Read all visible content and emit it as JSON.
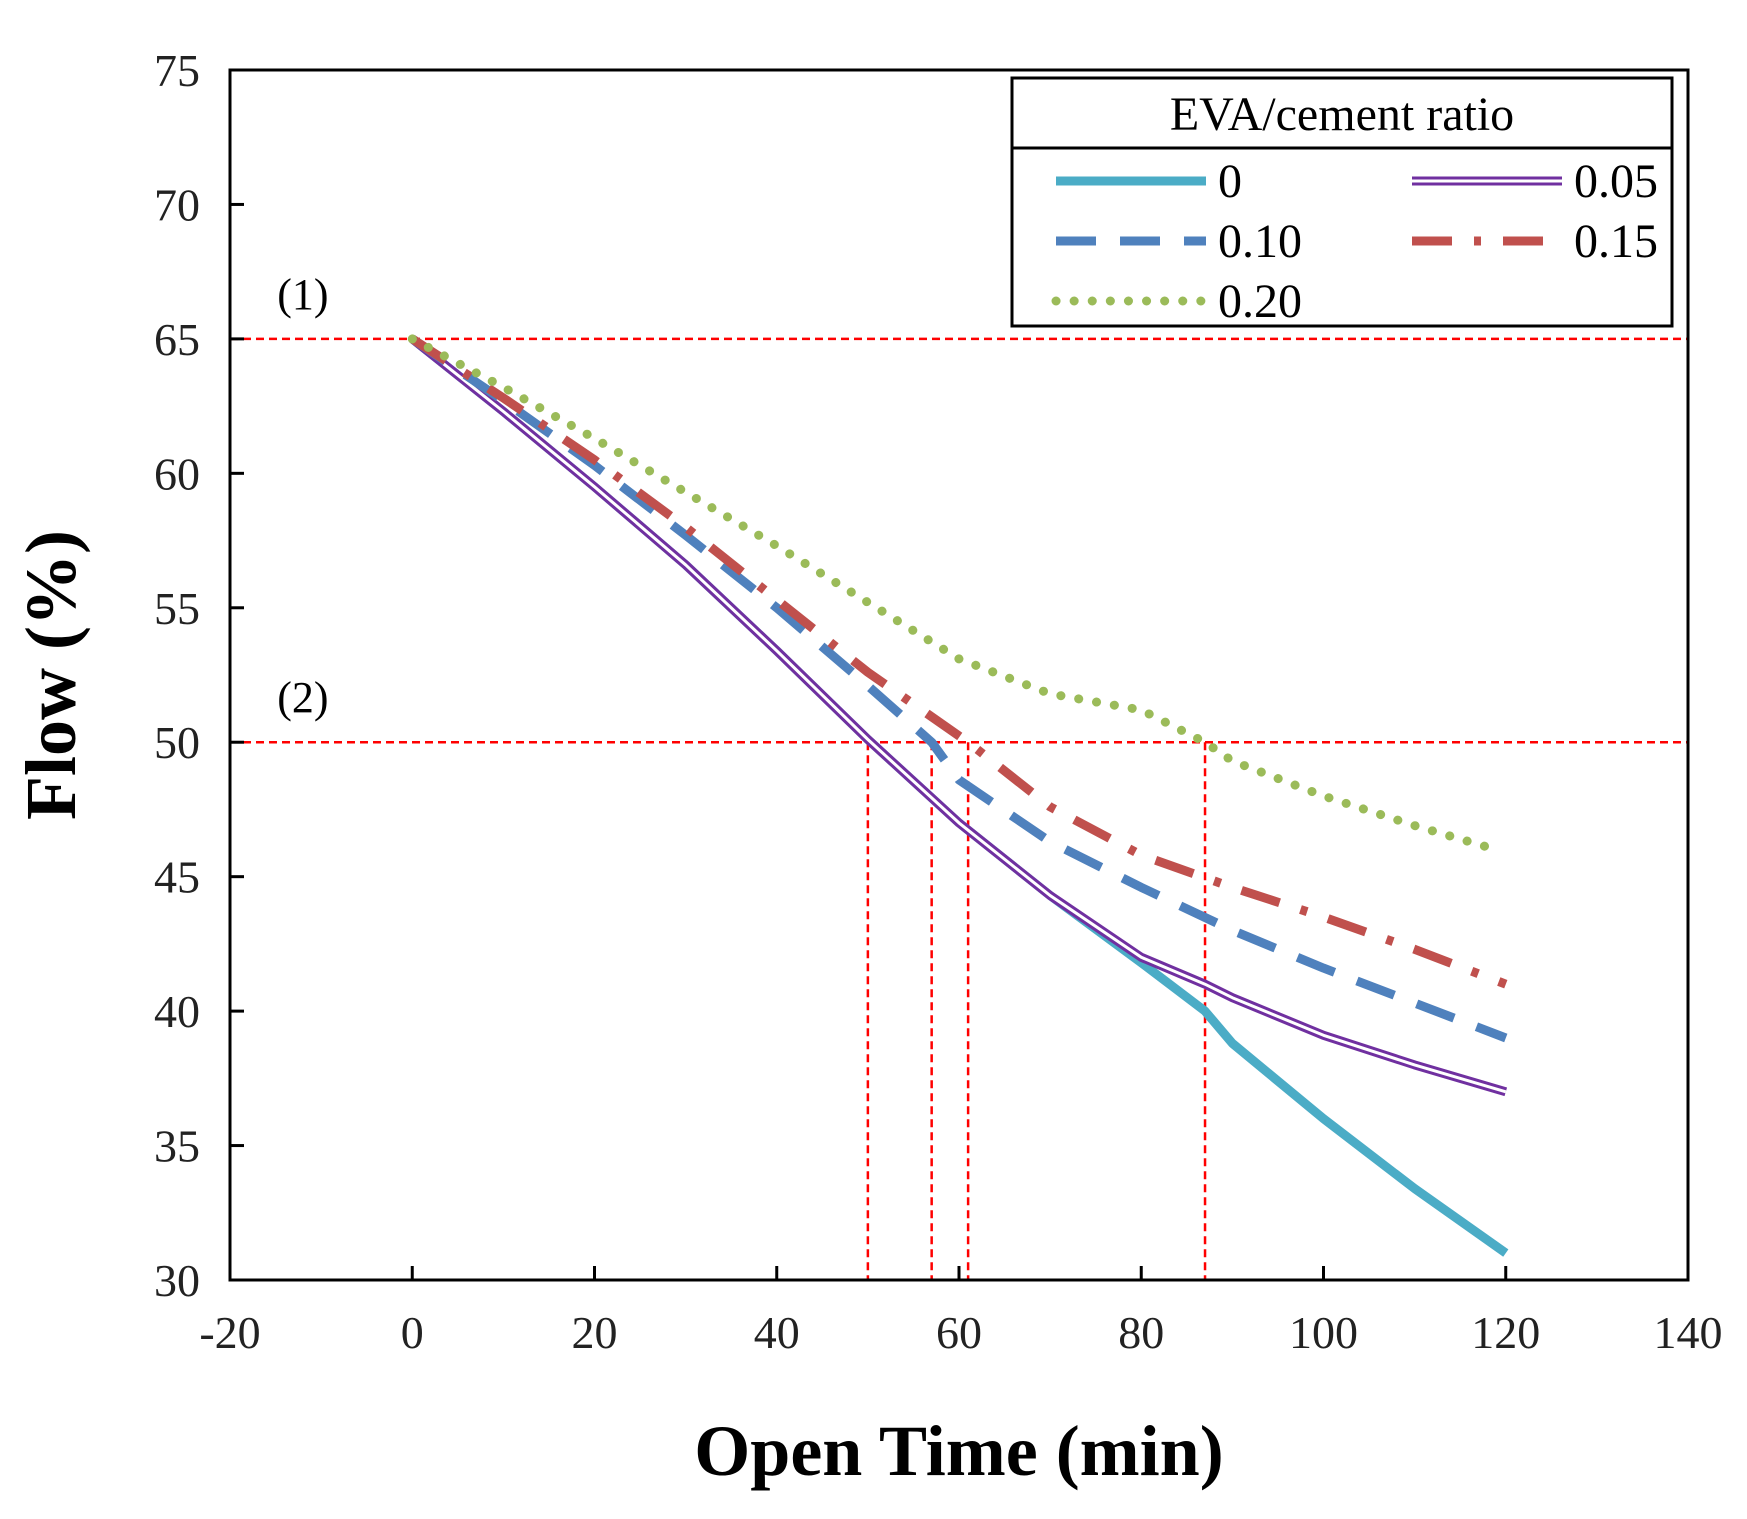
{
  "chart_data": {
    "type": "line",
    "xlabel": "Open Time (min)",
    "ylabel": "Flow (%)",
    "xlim": [
      -20,
      140
    ],
    "ylim": [
      30,
      75
    ],
    "xticks": [
      -20,
      0,
      20,
      40,
      60,
      80,
      100,
      120,
      140
    ],
    "yticks": [
      30,
      35,
      40,
      45,
      50,
      55,
      60,
      65,
      70,
      75
    ],
    "grid": false,
    "legend": {
      "title": "EVA/cement ratio",
      "placement": "top-right"
    },
    "series": [
      {
        "name": "0",
        "color": "#4bacc6",
        "style": "solid",
        "x": [
          0,
          10,
          20,
          30,
          40,
          50,
          60,
          70,
          80,
          87,
          90,
          100,
          110,
          120
        ],
        "y": [
          65,
          62.3,
          59.5,
          56.6,
          53.4,
          50.1,
          47.0,
          44.3,
          41.8,
          40.0,
          38.8,
          36.0,
          33.4,
          31.0
        ]
      },
      {
        "name": "0.05",
        "color": "#7030a0",
        "style": "double",
        "x": [
          0,
          10,
          20,
          30,
          40,
          50,
          60,
          70,
          80,
          87,
          90,
          100,
          110,
          120
        ],
        "y": [
          65,
          62.3,
          59.5,
          56.6,
          53.4,
          50.1,
          47.0,
          44.3,
          42.0,
          41.0,
          40.5,
          39.1,
          38.0,
          37.0
        ]
      },
      {
        "name": "0.10",
        "color": "#4f81bd",
        "style": "dash",
        "x": [
          0,
          10,
          20,
          30,
          40,
          50,
          57,
          60,
          70,
          80,
          90,
          100,
          110,
          120
        ],
        "y": [
          65,
          62.7,
          60.3,
          57.7,
          55.0,
          52.1,
          50.0,
          48.6,
          46.3,
          44.6,
          43.0,
          41.6,
          40.3,
          39.0
        ]
      },
      {
        "name": "0.15",
        "color": "#c0504d",
        "style": "dashdot",
        "x": [
          0,
          10,
          20,
          30,
          40,
          50,
          61,
          70,
          80,
          90,
          100,
          110,
          120
        ],
        "y": [
          65,
          62.8,
          60.5,
          58.0,
          55.3,
          52.6,
          50.0,
          47.6,
          45.8,
          44.6,
          43.5,
          42.3,
          41.0
        ]
      },
      {
        "name": "0.20",
        "color": "#9bbb59",
        "style": "dot",
        "x": [
          0,
          10,
          20,
          30,
          40,
          50,
          60,
          70,
          80,
          87,
          90,
          100,
          110,
          118
        ],
        "y": [
          65,
          63.2,
          61.3,
          59.3,
          57.3,
          55.2,
          53.1,
          51.8,
          51.2,
          50.0,
          49.3,
          48.0,
          46.9,
          46.1
        ]
      }
    ],
    "reference_lines": {
      "horizontal": [
        {
          "y": 65,
          "label": "(1)"
        },
        {
          "y": 50,
          "label": "(2)"
        }
      ],
      "vertical_x": [
        50,
        57,
        61,
        87
      ]
    }
  }
}
